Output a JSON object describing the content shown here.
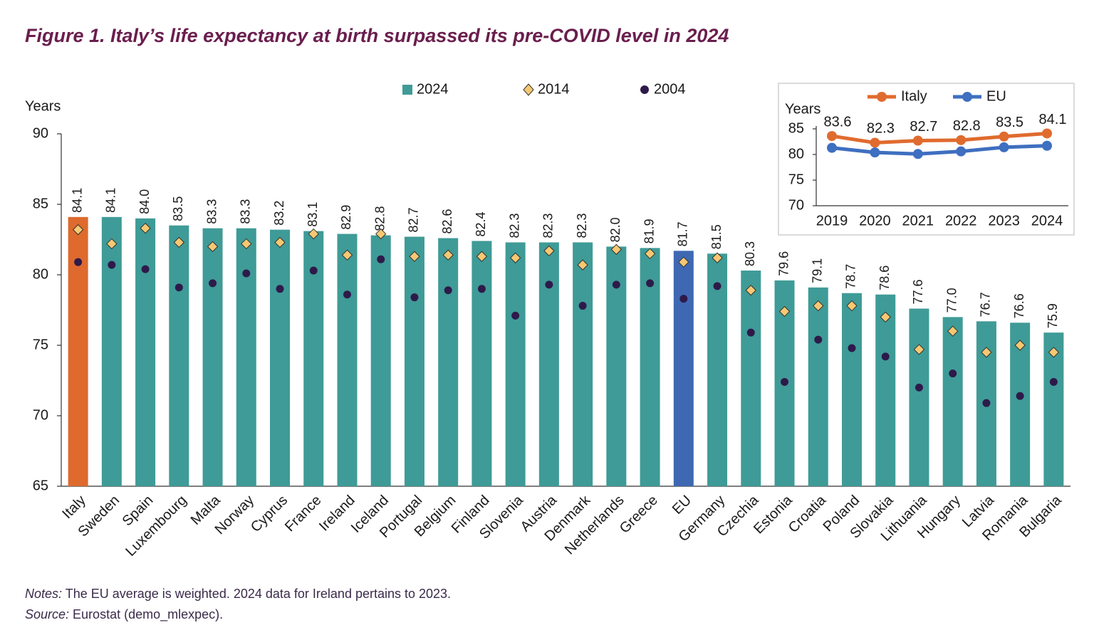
{
  "chart_data": [
    {
      "type": "bar",
      "title": "Figure 1. Italy’s life expectancy at birth surpassed its pre-COVID level in 2024",
      "y_label": "Years",
      "categories": [
        "Italy",
        "Sweden",
        "Spain",
        "Luxembourg",
        "Malta",
        "Norway",
        "Cyprus",
        "France",
        "Ireland",
        "Iceland",
        "Portugal",
        "Belgium",
        "Finland",
        "Slovenia",
        "Austria",
        "Denmark",
        "Netherlands",
        "Greece",
        "EU",
        "Germany",
        "Czechia",
        "Estonia",
        "Croatia",
        "Poland",
        "Slovakia",
        "Lithuania",
        "Hungary",
        "Latvia",
        "Romania",
        "Bulgaria"
      ],
      "series": [
        {
          "name": "2024",
          "color": "#3f9b97",
          "colors": [
            "#de6a2e",
            "#3f9b97",
            "#3f9b97",
            "#3f9b97",
            "#3f9b97",
            "#3f9b97",
            "#3f9b97",
            "#3f9b97",
            "#3f9b97",
            "#3f9b97",
            "#3f9b97",
            "#3f9b97",
            "#3f9b97",
            "#3f9b97",
            "#3f9b97",
            "#3f9b97",
            "#3f9b97",
            "#3f9b97",
            "#3f68b3",
            "#3f9b97",
            "#3f9b97",
            "#3f9b97",
            "#3f9b97",
            "#3f9b97",
            "#3f9b97",
            "#3f9b97",
            "#3f9b97",
            "#3f9b97",
            "#3f9b97",
            "#3f9b97"
          ],
          "values": [
            84.1,
            84.1,
            84.0,
            83.5,
            83.3,
            83.3,
            83.2,
            83.1,
            82.9,
            82.8,
            82.7,
            82.6,
            82.4,
            82.3,
            82.3,
            82.3,
            82.0,
            81.9,
            81.7,
            81.5,
            80.3,
            79.6,
            79.1,
            78.7,
            78.6,
            77.6,
            77.0,
            76.7,
            76.6,
            75.9
          ],
          "value_labels": [
            "84.1",
            "84.1",
            "84.0",
            "83.5",
            "83.3",
            "83.3",
            "83.2",
            "83.1",
            "82.9",
            "82.8",
            "82.7",
            "82.6",
            "82.4",
            "82.3",
            "82.3",
            "82.3",
            "82.0",
            "81.9",
            "81.7",
            "81.5",
            "80.3",
            "79.6",
            "79.1",
            "78.7",
            "78.6",
            "77.6",
            "77.0",
            "76.7",
            "76.6",
            "75.9"
          ]
        },
        {
          "name": "2014",
          "marker": "diamond",
          "color": "#f7c872",
          "values": [
            83.2,
            82.2,
            83.3,
            82.3,
            82.0,
            82.2,
            82.3,
            82.9,
            81.4,
            82.9,
            81.3,
            81.4,
            81.3,
            81.2,
            81.7,
            80.7,
            81.8,
            81.5,
            80.9,
            81.2,
            78.9,
            77.4,
            77.8,
            77.8,
            77.0,
            74.7,
            76.0,
            74.5,
            75.0,
            74.5
          ]
        },
        {
          "name": "2004",
          "marker": "circle",
          "color": "#2e1a4a",
          "values": [
            80.9,
            80.7,
            80.4,
            79.1,
            79.4,
            80.1,
            79.0,
            80.3,
            78.6,
            81.1,
            78.4,
            78.9,
            79.0,
            77.1,
            79.3,
            77.8,
            79.3,
            79.4,
            78.3,
            79.2,
            75.9,
            72.4,
            75.4,
            74.8,
            74.2,
            72.0,
            73.0,
            70.9,
            71.4,
            72.4
          ]
        }
      ],
      "ylim": [
        65,
        90
      ],
      "yticks": [
        65,
        70,
        75,
        80,
        85,
        90
      ],
      "notes": {
        "label": "Notes:",
        "text": " The EU average is weighted. 2024 data for Ireland pertains to 2023."
      },
      "source": {
        "label": "Source:",
        "text": " Eurostat (demo_mlexpec)."
      }
    },
    {
      "type": "line",
      "y_label": "Years",
      "categories": [
        "2019",
        "2020",
        "2021",
        "2022",
        "2023",
        "2024"
      ],
      "series": [
        {
          "name": "Italy",
          "color": "#e06b2e",
          "values": [
            83.6,
            82.3,
            82.7,
            82.8,
            83.5,
            84.1
          ]
        },
        {
          "name": "EU",
          "color": "#3e6fc0",
          "values": [
            81.3,
            80.4,
            80.1,
            80.6,
            81.4,
            81.7
          ]
        }
      ],
      "ylim": [
        70,
        85
      ],
      "yticks": [
        70,
        75,
        80,
        85
      ]
    }
  ]
}
